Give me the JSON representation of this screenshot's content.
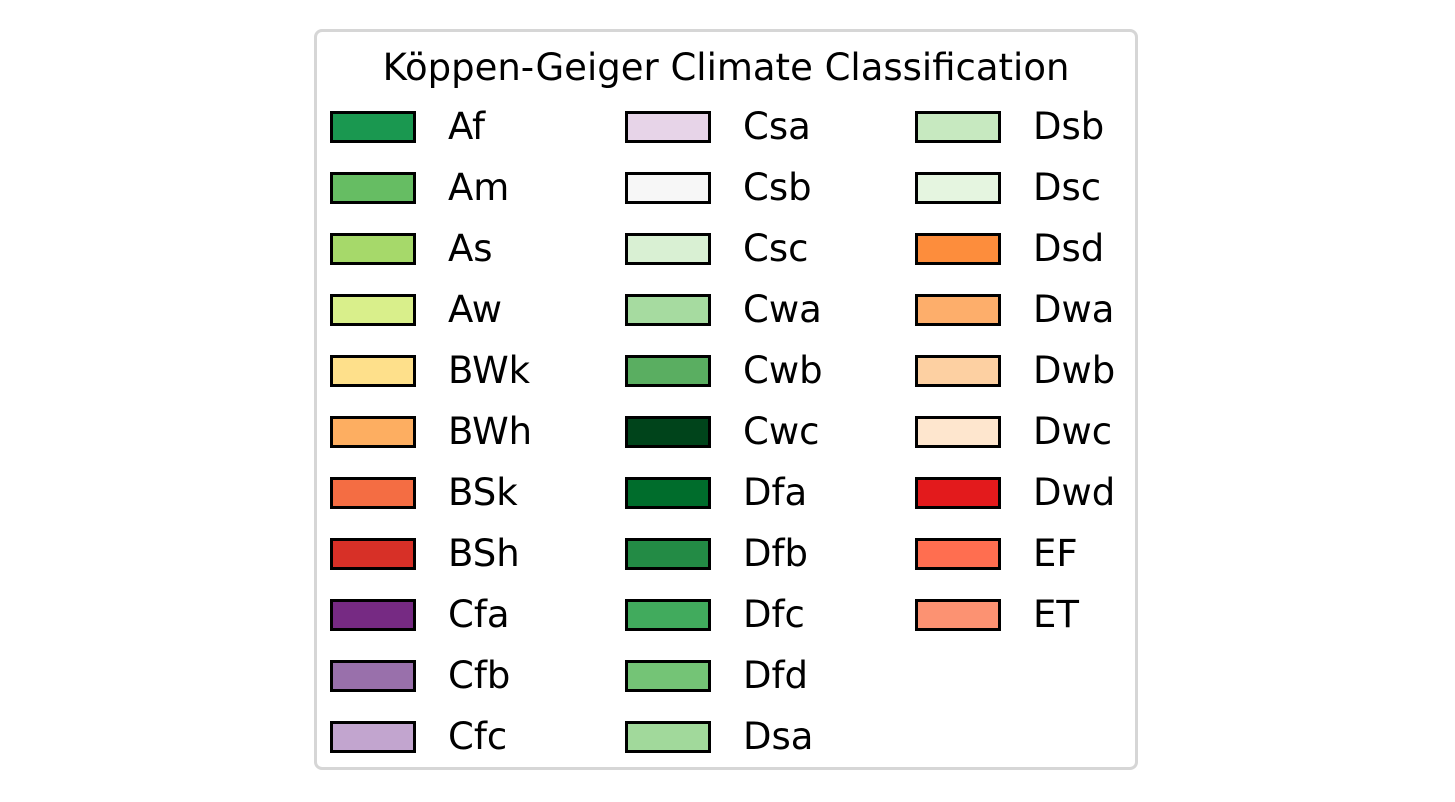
{
  "chart_data": {
    "type": "legend",
    "title": "Köppen-Geiger Climate Classification",
    "columns": 3,
    "entries": [
      {
        "label": "Af",
        "color": "#1a9850"
      },
      {
        "label": "Am",
        "color": "#66bd63"
      },
      {
        "label": "As",
        "color": "#a6d96a"
      },
      {
        "label": "Aw",
        "color": "#d9ef8b"
      },
      {
        "label": "BWk",
        "color": "#fee08b"
      },
      {
        "label": "BWh",
        "color": "#fdae61"
      },
      {
        "label": "BSk",
        "color": "#f46d43"
      },
      {
        "label": "BSh",
        "color": "#d73027"
      },
      {
        "label": "Cfa",
        "color": "#762a83"
      },
      {
        "label": "Cfb",
        "color": "#9970ab"
      },
      {
        "label": "Cfc",
        "color": "#c2a5cf"
      },
      {
        "label": "Csa",
        "color": "#e7d4e8"
      },
      {
        "label": "Csb",
        "color": "#f7f7f7"
      },
      {
        "label": "Csc",
        "color": "#d9f0d3"
      },
      {
        "label": "Cwa",
        "color": "#a6dba0"
      },
      {
        "label": "Cwb",
        "color": "#5aae61"
      },
      {
        "label": "Cwc",
        "color": "#00441b"
      },
      {
        "label": "Dfa",
        "color": "#006d2c"
      },
      {
        "label": "Dfb",
        "color": "#238b45"
      },
      {
        "label": "Dfc",
        "color": "#41ab5d"
      },
      {
        "label": "Dfd",
        "color": "#74c476"
      },
      {
        "label": "Dsa",
        "color": "#a1d99b"
      },
      {
        "label": "Dsb",
        "color": "#c7e9c0"
      },
      {
        "label": "Dsc",
        "color": "#e5f5e0"
      },
      {
        "label": "Dsd",
        "color": "#fd8d3c"
      },
      {
        "label": "Dwa",
        "color": "#fdae6b"
      },
      {
        "label": "Dwb",
        "color": "#fdd0a2"
      },
      {
        "label": "Dwc",
        "color": "#fee6ce"
      },
      {
        "label": "Dwd",
        "color": "#e31a1c"
      },
      {
        "label": "EF",
        "color": "#ff6e50"
      },
      {
        "label": "ET",
        "color": "#fc9272"
      }
    ]
  }
}
